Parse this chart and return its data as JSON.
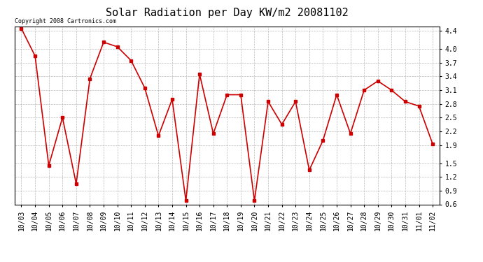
{
  "title": "Solar Radiation per Day KW/m2 20081102",
  "copyright_text": "Copyright 2008 Cartronics.com",
  "dates": [
    "10/03",
    "10/04",
    "10/05",
    "10/06",
    "10/07",
    "10/08",
    "10/09",
    "10/10",
    "10/11",
    "10/12",
    "10/13",
    "10/14",
    "10/15",
    "10/16",
    "10/17",
    "10/18",
    "10/19",
    "10/20",
    "10/21",
    "10/22",
    "10/23",
    "10/24",
    "10/25",
    "10/26",
    "10/27",
    "10/28",
    "10/29",
    "10/30",
    "10/31",
    "11/01",
    "11/02"
  ],
  "values": [
    4.45,
    3.85,
    1.45,
    2.5,
    1.05,
    3.35,
    4.15,
    4.05,
    3.75,
    3.15,
    2.1,
    2.9,
    0.68,
    3.45,
    2.15,
    3.0,
    3.0,
    0.68,
    2.85,
    2.35,
    2.85,
    1.35,
    2.0,
    3.0,
    2.15,
    3.1,
    3.3,
    3.1,
    2.85,
    2.75,
    1.92
  ],
  "line_color": "#cc0000",
  "marker": "s",
  "marker_size": 3,
  "background_color": "#ffffff",
  "plot_bg_color": "#ffffff",
  "grid_color": "#aaaaaa",
  "ylim": [
    0.6,
    4.5
  ],
  "yticks": [
    0.6,
    0.9,
    1.2,
    1.5,
    1.9,
    2.2,
    2.5,
    2.8,
    3.1,
    3.4,
    3.7,
    4.0,
    4.4
  ],
  "title_fontsize": 11,
  "tick_fontsize": 7,
  "copyright_fontsize": 6
}
